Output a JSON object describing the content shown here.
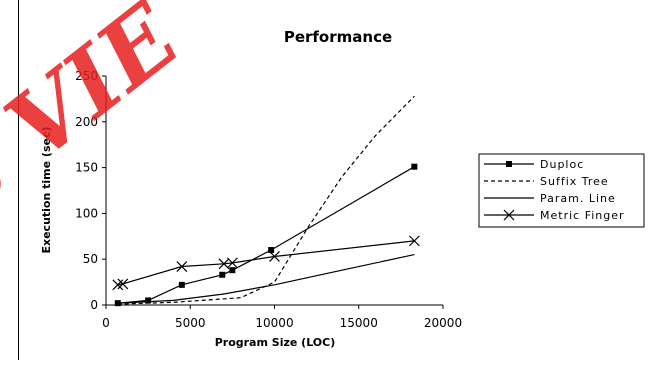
{
  "chart_data": {
    "type": "line",
    "title": "Performance",
    "xlabel": "Program Size (LOC)",
    "ylabel": "Execution time (sec)",
    "xlim": [
      0,
      20000
    ],
    "ylim": [
      0,
      250
    ],
    "xticks": [
      "0",
      "5000",
      "10000",
      "15000",
      "20000"
    ],
    "yticks": [
      "0",
      "50",
      "100",
      "150",
      "200",
      "250"
    ],
    "grid": false,
    "legend_position": "right",
    "series": [
      {
        "name": "Duploc",
        "marker": "square",
        "dash": "solid",
        "color": "#000000",
        "x": [
          700,
          2500,
          4500,
          6900,
          7500,
          9800,
          18300
        ],
        "y": [
          2,
          5,
          22,
          33,
          38,
          60,
          151
        ]
      },
      {
        "name": "Suffix Tree",
        "marker": "none",
        "dash": "dashed",
        "color": "#000000",
        "x": [
          700,
          4000,
          8000,
          10000,
          12000,
          14000,
          16000,
          18300
        ],
        "y": [
          1,
          3,
          8,
          25,
          85,
          140,
          185,
          228
        ]
      },
      {
        "name": "Param. Line",
        "marker": "none",
        "dash": "solid",
        "color": "#000000",
        "x": [
          700,
          4000,
          7000,
          10000,
          14000,
          18300
        ],
        "y": [
          2,
          5,
          12,
          22,
          38,
          55
        ]
      },
      {
        "name": "Metric Finger",
        "marker": "cross",
        "dash": "solid",
        "color": "#000000",
        "x": [
          700,
          1000,
          4500,
          7000,
          7500,
          10000,
          18300
        ],
        "y": [
          22,
          23,
          42,
          45,
          46,
          53,
          70
        ]
      }
    ]
  },
  "watermark": {
    "text": "e VIE",
    "color": "#e61e1e"
  }
}
